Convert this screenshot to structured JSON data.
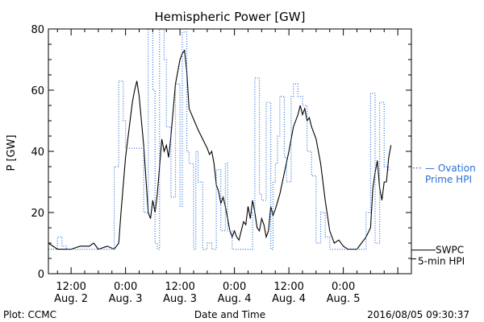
{
  "chart_data": {
    "type": "line",
    "title": "Hemispheric Power [GW]",
    "xlabel": "Date and Time",
    "ylabel": "P [GW]",
    "ylim": [
      0,
      80
    ],
    "y_ticks": [
      0,
      20,
      40,
      60,
      80
    ],
    "xlim": [
      "2016-08-02T07:00",
      "2016-08-05T15:00"
    ],
    "x_ticks": [
      {
        "t": "2016-08-02T12:00",
        "time": "12:00",
        "date": "Aug. 2"
      },
      {
        "t": "2016-08-03T00:00",
        "time": "0:00",
        "date": "Aug. 3"
      },
      {
        "t": "2016-08-03T12:00",
        "time": "12:00",
        "date": "Aug. 3"
      },
      {
        "t": "2016-08-04T00:00",
        "time": "0:00",
        "date": "Aug. 4"
      },
      {
        "t": "2016-08-04T12:00",
        "time": "12:00",
        "date": "Aug. 4"
      },
      {
        "t": "2016-08-05T00:00",
        "time": "0:00",
        "date": "Aug. 5"
      }
    ],
    "grid": false,
    "legend_placement": "right",
    "footer_left": "Plot: CCMC",
    "footer_right": "2016/08/05 09:30:37",
    "series": [
      {
        "name": "SWPC 5-min HPI",
        "legend_line1": "SWPC",
        "legend_line2": "5-min HPI",
        "color": "#000000",
        "style": "solid",
        "points": [
          [
            "2016-08-02T07:00",
            10
          ],
          [
            "2016-08-02T09:00",
            8
          ],
          [
            "2016-08-02T12:00",
            8
          ],
          [
            "2016-08-02T14:00",
            9
          ],
          [
            "2016-08-02T16:00",
            9
          ],
          [
            "2016-08-02T17:00",
            10
          ],
          [
            "2016-08-02T18:00",
            8
          ],
          [
            "2016-08-02T20:00",
            9
          ],
          [
            "2016-08-02T21:30",
            8
          ],
          [
            "2016-08-02T22:30",
            10
          ],
          [
            "2016-08-02T23:00",
            20
          ],
          [
            "2016-08-03T00:00",
            38
          ],
          [
            "2016-08-03T01:00",
            50
          ],
          [
            "2016-08-03T01:30",
            56
          ],
          [
            "2016-08-03T02:00",
            60
          ],
          [
            "2016-08-03T02:30",
            63
          ],
          [
            "2016-08-03T03:00",
            58
          ],
          [
            "2016-08-03T04:00",
            42
          ],
          [
            "2016-08-03T05:00",
            20
          ],
          [
            "2016-08-03T05:30",
            18
          ],
          [
            "2016-08-03T06:00",
            24
          ],
          [
            "2016-08-03T06:30",
            20
          ],
          [
            "2016-08-03T07:00",
            26
          ],
          [
            "2016-08-03T08:00",
            44
          ],
          [
            "2016-08-03T08:30",
            40
          ],
          [
            "2016-08-03T09:00",
            42
          ],
          [
            "2016-08-03T09:30",
            38
          ],
          [
            "2016-08-03T10:00",
            45
          ],
          [
            "2016-08-03T11:00",
            62
          ],
          [
            "2016-08-03T12:00",
            70
          ],
          [
            "2016-08-03T12:30",
            72
          ],
          [
            "2016-08-03T13:00",
            73
          ],
          [
            "2016-08-03T13:30",
            66
          ],
          [
            "2016-08-03T14:00",
            54
          ],
          [
            "2016-08-03T16:00",
            47
          ],
          [
            "2016-08-03T18:00",
            41
          ],
          [
            "2016-08-03T18:30",
            39
          ],
          [
            "2016-08-03T19:00",
            40
          ],
          [
            "2016-08-03T19:30",
            36
          ],
          [
            "2016-08-03T20:00",
            29
          ],
          [
            "2016-08-03T20:30",
            27
          ],
          [
            "2016-08-03T21:00",
            23
          ],
          [
            "2016-08-03T21:30",
            25
          ],
          [
            "2016-08-03T22:00",
            22
          ],
          [
            "2016-08-03T22:30",
            18
          ],
          [
            "2016-08-03T23:00",
            14
          ],
          [
            "2016-08-03T23:30",
            12
          ],
          [
            "2016-08-04T00:00",
            14
          ],
          [
            "2016-08-04T00:30",
            12
          ],
          [
            "2016-08-04T01:00",
            11
          ],
          [
            "2016-08-04T01:30",
            14
          ],
          [
            "2016-08-04T02:00",
            17
          ],
          [
            "2016-08-04T02:30",
            16
          ],
          [
            "2016-08-04T03:00",
            22
          ],
          [
            "2016-08-04T03:30",
            18
          ],
          [
            "2016-08-04T04:00",
            24
          ],
          [
            "2016-08-04T04:30",
            20
          ],
          [
            "2016-08-04T05:00",
            15
          ],
          [
            "2016-08-04T05:30",
            14
          ],
          [
            "2016-08-04T06:00",
            18
          ],
          [
            "2016-08-04T06:30",
            16
          ],
          [
            "2016-08-04T07:00",
            12
          ],
          [
            "2016-08-04T07:30",
            14
          ],
          [
            "2016-08-04T08:00",
            22
          ],
          [
            "2016-08-04T08:30",
            19
          ],
          [
            "2016-08-04T09:00",
            21
          ],
          [
            "2016-08-04T10:00",
            26
          ],
          [
            "2016-08-04T11:00",
            33
          ],
          [
            "2016-08-04T12:00",
            40
          ],
          [
            "2016-08-04T13:00",
            48
          ],
          [
            "2016-08-04T14:00",
            52
          ],
          [
            "2016-08-04T14:30",
            55
          ],
          [
            "2016-08-04T15:00",
            52
          ],
          [
            "2016-08-04T15:30",
            54
          ],
          [
            "2016-08-04T16:00",
            50
          ],
          [
            "2016-08-04T16:30",
            51
          ],
          [
            "2016-08-04T17:00",
            48
          ],
          [
            "2016-08-04T18:00",
            44
          ],
          [
            "2016-08-04T19:00",
            36
          ],
          [
            "2016-08-04T20:00",
            24
          ],
          [
            "2016-08-04T21:00",
            14
          ],
          [
            "2016-08-04T22:00",
            10
          ],
          [
            "2016-08-04T23:00",
            11
          ],
          [
            "2016-08-05T00:00",
            9
          ],
          [
            "2016-08-05T01:00",
            8
          ],
          [
            "2016-08-05T02:00",
            8
          ],
          [
            "2016-08-05T03:00",
            8
          ],
          [
            "2016-08-05T04:00",
            10
          ],
          [
            "2016-08-05T05:00",
            12
          ],
          [
            "2016-08-05T06:00",
            15
          ],
          [
            "2016-08-05T06:30",
            28
          ],
          [
            "2016-08-05T07:00",
            33
          ],
          [
            "2016-08-05T07:30",
            37
          ],
          [
            "2016-08-05T08:00",
            28
          ],
          [
            "2016-08-05T08:30",
            24
          ],
          [
            "2016-08-05T09:00",
            30
          ],
          [
            "2016-08-05T09:30",
            30
          ],
          [
            "2016-08-05T10:00",
            38
          ],
          [
            "2016-08-05T10:30",
            42
          ]
        ]
      },
      {
        "name": "Ovation Prime HPI",
        "legend_line1": "— Ovation",
        "legend_line2": "Prime HPI",
        "color": "#2a6fd6",
        "style": "dotted-step",
        "points": [
          [
            "2016-08-02T07:00",
            8
          ],
          [
            "2016-08-02T08:00",
            8
          ],
          [
            "2016-08-02T09:00",
            12
          ],
          [
            "2016-08-02T10:00",
            9
          ],
          [
            "2016-08-02T11:00",
            8
          ],
          [
            "2016-08-02T21:00",
            8
          ],
          [
            "2016-08-02T21:30",
            35
          ],
          [
            "2016-08-02T22:30",
            63
          ],
          [
            "2016-08-02T23:30",
            50
          ],
          [
            "2016-08-03T00:00",
            41
          ],
          [
            "2016-08-03T03:30",
            41
          ],
          [
            "2016-08-03T04:00",
            20
          ],
          [
            "2016-08-03T05:00",
            80
          ],
          [
            "2016-08-03T06:00",
            60
          ],
          [
            "2016-08-03T06:30",
            10
          ],
          [
            "2016-08-03T07:00",
            8
          ],
          [
            "2016-08-03T07:30",
            80
          ],
          [
            "2016-08-03T08:30",
            70
          ],
          [
            "2016-08-03T09:00",
            48
          ],
          [
            "2016-08-03T10:00",
            25
          ],
          [
            "2016-08-03T11:00",
            62
          ],
          [
            "2016-08-03T12:00",
            22
          ],
          [
            "2016-08-03T12:30",
            79
          ],
          [
            "2016-08-03T13:30",
            40
          ],
          [
            "2016-08-03T14:00",
            36
          ],
          [
            "2016-08-03T15:00",
            8
          ],
          [
            "2016-08-03T15:30",
            40
          ],
          [
            "2016-08-03T16:00",
            30
          ],
          [
            "2016-08-03T17:00",
            8
          ],
          [
            "2016-08-03T18:00",
            10
          ],
          [
            "2016-08-03T19:00",
            8
          ],
          [
            "2016-08-03T20:00",
            34
          ],
          [
            "2016-08-03T21:00",
            14
          ],
          [
            "2016-08-03T22:00",
            36
          ],
          [
            "2016-08-03T22:30",
            14
          ],
          [
            "2016-08-03T23:30",
            8
          ],
          [
            "2016-08-04T04:00",
            20
          ],
          [
            "2016-08-04T04:30",
            64
          ],
          [
            "2016-08-04T05:30",
            26
          ],
          [
            "2016-08-04T06:00",
            24
          ],
          [
            "2016-08-04T07:00",
            56
          ],
          [
            "2016-08-04T08:00",
            8
          ],
          [
            "2016-08-04T08:30",
            30
          ],
          [
            "2016-08-04T09:00",
            36
          ],
          [
            "2016-08-04T09:30",
            45
          ],
          [
            "2016-08-04T10:00",
            58
          ],
          [
            "2016-08-04T11:00",
            38
          ],
          [
            "2016-08-04T11:30",
            30
          ],
          [
            "2016-08-04T12:30",
            58
          ],
          [
            "2016-08-04T13:00",
            62
          ],
          [
            "2016-08-04T14:00",
            58
          ],
          [
            "2016-08-04T15:00",
            55
          ],
          [
            "2016-08-04T16:00",
            40
          ],
          [
            "2016-08-04T17:00",
            32
          ],
          [
            "2016-08-04T18:00",
            10
          ],
          [
            "2016-08-04T19:00",
            20
          ],
          [
            "2016-08-04T20:00",
            12
          ],
          [
            "2016-08-04T21:00",
            8
          ],
          [
            "2016-08-04T22:00",
            8
          ],
          [
            "2016-08-05T00:00",
            8
          ],
          [
            "2016-08-05T02:00",
            8
          ],
          [
            "2016-08-05T04:00",
            8
          ],
          [
            "2016-08-05T05:00",
            20
          ],
          [
            "2016-08-05T06:00",
            59
          ],
          [
            "2016-08-05T07:00",
            10
          ],
          [
            "2016-08-05T08:00",
            56
          ],
          [
            "2016-08-05T09:00",
            35
          ],
          [
            "2016-08-05T10:00",
            34
          ],
          [
            "2016-08-05T10:30",
            34
          ]
        ]
      }
    ]
  }
}
